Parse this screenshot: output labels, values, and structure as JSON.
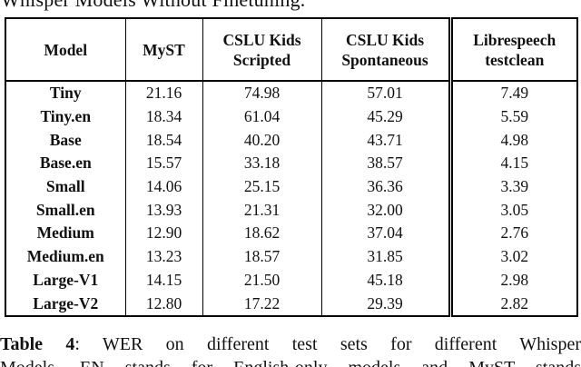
{
  "page": {
    "top_clipped_text": "Whisper Models Without Finetuning."
  },
  "table": {
    "columns": [
      [
        "Model"
      ],
      [
        "MyST"
      ],
      [
        "CSLU Kids",
        "Scripted"
      ],
      [
        "CSLU Kids",
        "Spontaneous"
      ],
      [
        "Librespeech",
        "testclean"
      ]
    ],
    "rows": [
      {
        "model": "Tiny",
        "values": [
          "21.16",
          "74.98",
          "57.01",
          "7.49"
        ]
      },
      {
        "model": "Tiny.en",
        "values": [
          "18.34",
          "61.04",
          "45.29",
          "5.59"
        ]
      },
      {
        "model": "Base",
        "values": [
          "18.54",
          "40.20",
          "43.71",
          "4.98"
        ]
      },
      {
        "model": "Base.en",
        "values": [
          "15.57",
          "33.18",
          "38.57",
          "4.15"
        ]
      },
      {
        "model": "Small",
        "values": [
          "14.06",
          "25.15",
          "36.36",
          "3.39"
        ]
      },
      {
        "model": "Small.en",
        "values": [
          "13.93",
          "21.31",
          "32.00",
          "3.05"
        ]
      },
      {
        "model": "Medium",
        "values": [
          "12.90",
          "18.62",
          "37.04",
          "2.76"
        ]
      },
      {
        "model": "Medium.en",
        "values": [
          "13.23",
          "18.57",
          "31.85",
          "3.02"
        ]
      },
      {
        "model": "Large-V1",
        "values": [
          "14.15",
          "21.50",
          "45.18",
          "2.98"
        ]
      },
      {
        "model": "Large-V2",
        "values": [
          "12.80",
          "17.22",
          "29.39",
          "2.82"
        ]
      }
    ]
  },
  "caption": {
    "label": "Table 4",
    "separator": ": ",
    "text": "WER on different test sets for different Whisper",
    "clipped_second_line": "Models. EN stands for English-only models and MyST stands"
  },
  "chart_data": {
    "type": "table",
    "title": "WER on different test sets for different Whisper Models Without Finetuning",
    "categories": [
      "MyST",
      "CSLU Kids Scripted",
      "CSLU Kids Spontaneous",
      "Librespeech testclean"
    ],
    "series": [
      {
        "name": "Tiny",
        "values": [
          21.16,
          74.98,
          57.01,
          7.49
        ]
      },
      {
        "name": "Tiny.en",
        "values": [
          18.34,
          61.04,
          45.29,
          5.59
        ]
      },
      {
        "name": "Base",
        "values": [
          18.54,
          40.2,
          43.71,
          4.98
        ]
      },
      {
        "name": "Base.en",
        "values": [
          15.57,
          33.18,
          38.57,
          4.15
        ]
      },
      {
        "name": "Small",
        "values": [
          14.06,
          25.15,
          36.36,
          3.39
        ]
      },
      {
        "name": "Small.en",
        "values": [
          13.93,
          21.31,
          32.0,
          3.05
        ]
      },
      {
        "name": "Medium",
        "values": [
          12.9,
          18.62,
          37.04,
          2.76
        ]
      },
      {
        "name": "Medium.en",
        "values": [
          13.23,
          18.57,
          31.85,
          3.02
        ]
      },
      {
        "name": "Large-V1",
        "values": [
          14.15,
          21.5,
          45.18,
          2.98
        ]
      },
      {
        "name": "Large-V2",
        "values": [
          12.8,
          17.22,
          29.39,
          2.82
        ]
      }
    ]
  }
}
